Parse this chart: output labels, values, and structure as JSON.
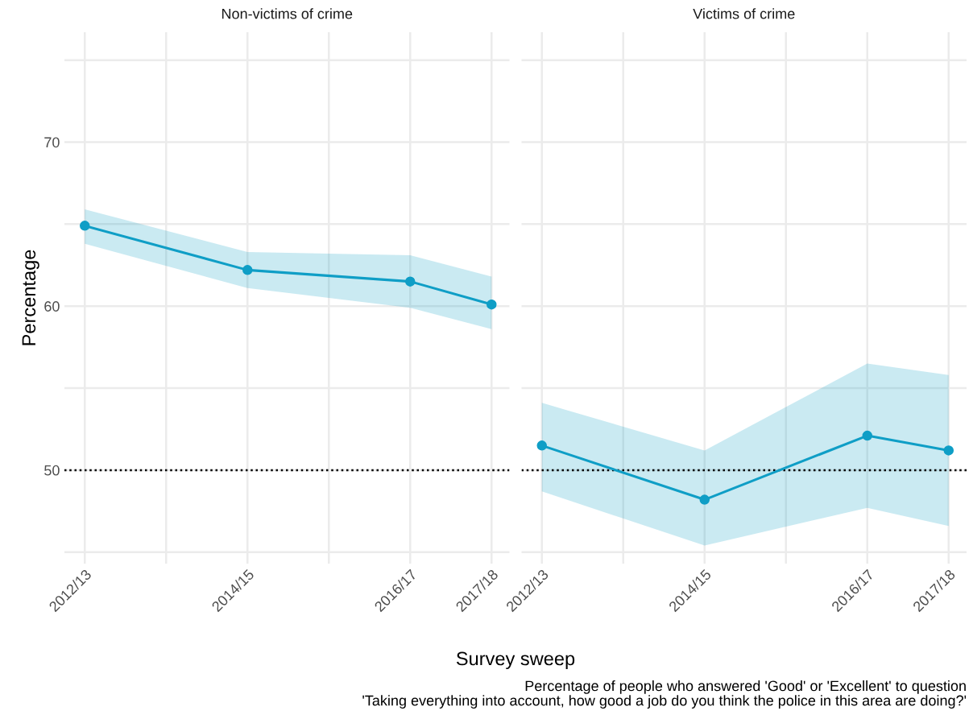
{
  "chart_data": [
    {
      "type": "line",
      "title": "Non-victims of crime",
      "ylabel": "Percentage",
      "xlabel": "Survey sweep",
      "categories": [
        "2012/13",
        null,
        "2014/15",
        null,
        "2016/17",
        "2017/18"
      ],
      "series": [
        {
          "color": "#0f9ec6",
          "values": [
            64.9,
            null,
            62.2,
            null,
            61.5,
            60.1
          ],
          "lower": [
            63.8,
            null,
            61.1,
            null,
            59.9,
            58.6
          ],
          "upper": [
            65.9,
            null,
            63.3,
            null,
            63.1,
            61.8
          ]
        }
      ],
      "ylim": [
        44.3,
        76.7
      ],
      "yticks": [
        {
          "value": 45,
          "label": null
        },
        50,
        {
          "value": 55,
          "label": null
        },
        60,
        {
          "value": 65,
          "label": null
        },
        70,
        {
          "value": 75,
          "label": null
        }
      ],
      "ref_lines": [
        {
          "axis": "y",
          "value": 50,
          "color": "#000000",
          "line_style": "dotted"
        }
      ],
      "grid": true,
      "marker": "circle",
      "line_style": "solid"
    },
    {
      "type": "line",
      "title": "Victims of crime",
      "categories": [
        "2012/13",
        null,
        "2014/15",
        null,
        "2016/17",
        "2017/18"
      ],
      "series": [
        {
          "color": "#0f9ec6",
          "values": [
            51.5,
            null,
            48.2,
            null,
            52.1,
            51.2
          ],
          "lower": [
            48.7,
            null,
            45.4,
            null,
            47.7,
            46.6
          ],
          "upper": [
            54.1,
            null,
            51.2,
            null,
            56.5,
            55.8
          ]
        }
      ],
      "ylim": [
        44.3,
        76.7
      ],
      "yticks": [
        {
          "value": 45,
          "label": null
        },
        50,
        {
          "value": 55,
          "label": null
        },
        60,
        {
          "value": 65,
          "label": null
        },
        70,
        {
          "value": 75,
          "label": null
        }
      ],
      "ref_lines": [
        {
          "axis": "y",
          "value": 50,
          "color": "#000000",
          "line_style": "dotted"
        }
      ],
      "grid": true,
      "marker": "circle",
      "line_style": "solid",
      "tick_labels": "x",
      "annotations": [
        "Percentage of people who answered 'Good' or 'Excellent' to question\n'Taking everything into account, how good a job do you think the police in this area are doing?'"
      ]
    }
  ]
}
